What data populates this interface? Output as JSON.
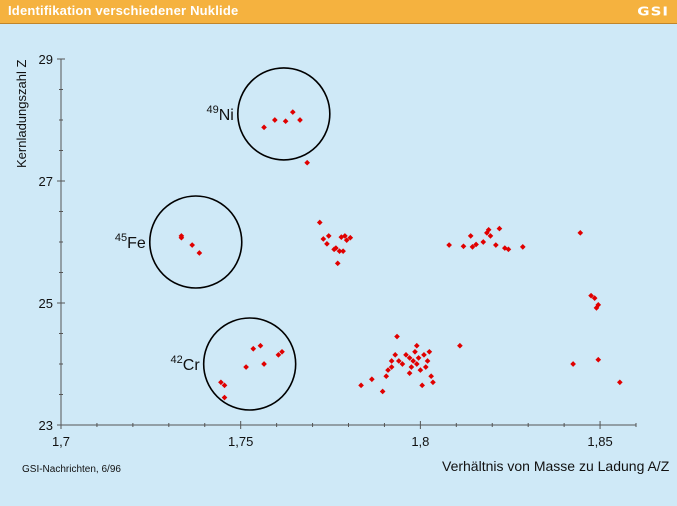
{
  "header": {
    "title": "Identifikation verschiedener Nuklide",
    "logo": "GSI"
  },
  "footer": {
    "source": "GSI-Nachrichten, 6/96"
  },
  "colors": {
    "header_bg": "#f5b23f",
    "plot_bg": "#cfe9f7",
    "point": "#e00000"
  },
  "chart_data": {
    "type": "scatter",
    "title": "Identifikation verschiedener Nuklide",
    "xlabel": "Verhältnis von Masse zu Ladung A/Z",
    "ylabel": "Kernladungszahl Z",
    "xlim": [
      1.7,
      1.86
    ],
    "ylim": [
      23,
      29
    ],
    "x_ticks": [
      1.7,
      1.75,
      1.8,
      1.85
    ],
    "x_tick_labels": [
      "1,7",
      "1,75",
      "1,8",
      "1,85"
    ],
    "y_ticks": [
      23,
      25,
      27,
      29
    ],
    "y_tick_labels": [
      "23",
      "25",
      "27",
      "29"
    ],
    "grid": false,
    "annotations": [
      {
        "label_mass": "49",
        "label_elem": "Ni",
        "cx": 1.762,
        "cy": 28.1
      },
      {
        "label_mass": "45",
        "label_elem": "Fe",
        "cx": 1.7375,
        "cy": 26.0
      },
      {
        "label_mass": "42",
        "label_elem": "Cr",
        "cx": 1.7525,
        "cy": 24.0
      }
    ],
    "points": [
      [
        1.7565,
        27.88
      ],
      [
        1.7595,
        28.0
      ],
      [
        1.7625,
        27.98
      ],
      [
        1.7645,
        28.13
      ],
      [
        1.7665,
        28.0
      ],
      [
        1.7685,
        27.3
      ],
      [
        1.7335,
        26.1
      ],
      [
        1.7335,
        26.07
      ],
      [
        1.7365,
        25.95
      ],
      [
        1.7385,
        25.82
      ],
      [
        1.7445,
        23.7
      ],
      [
        1.7455,
        23.65
      ],
      [
        1.7455,
        23.45
      ],
      [
        1.7515,
        23.95
      ],
      [
        1.7535,
        24.25
      ],
      [
        1.7555,
        24.3
      ],
      [
        1.7565,
        24.0
      ],
      [
        1.7605,
        24.15
      ],
      [
        1.7615,
        24.2
      ],
      [
        1.772,
        26.32
      ],
      [
        1.773,
        26.05
      ],
      [
        1.774,
        25.97
      ],
      [
        1.7745,
        26.1
      ],
      [
        1.776,
        25.88
      ],
      [
        1.7765,
        25.9
      ],
      [
        1.7775,
        25.85
      ],
      [
        1.777,
        25.65
      ],
      [
        1.7785,
        25.85
      ],
      [
        1.778,
        26.08
      ],
      [
        1.779,
        26.1
      ],
      [
        1.7795,
        26.03
      ],
      [
        1.7805,
        26.07
      ],
      [
        1.7835,
        23.65
      ],
      [
        1.7865,
        23.75
      ],
      [
        1.7895,
        23.55
      ],
      [
        1.7905,
        23.8
      ],
      [
        1.791,
        23.9
      ],
      [
        1.792,
        23.95
      ],
      [
        1.792,
        24.05
      ],
      [
        1.793,
        24.15
      ],
      [
        1.7935,
        24.45
      ],
      [
        1.794,
        24.05
      ],
      [
        1.795,
        24.0
      ],
      [
        1.796,
        24.15
      ],
      [
        1.797,
        24.1
      ],
      [
        1.7975,
        23.95
      ],
      [
        1.798,
        24.05
      ],
      [
        1.7985,
        24.2
      ],
      [
        1.799,
        24.0
      ],
      [
        1.8,
        23.9
      ],
      [
        1.7995,
        24.1
      ],
      [
        1.801,
        24.15
      ],
      [
        1.8015,
        23.95
      ],
      [
        1.8005,
        23.65
      ],
      [
        1.802,
        24.05
      ],
      [
        1.8025,
        24.2
      ],
      [
        1.803,
        23.8
      ],
      [
        1.8035,
        23.7
      ],
      [
        1.797,
        23.85
      ],
      [
        1.799,
        24.3
      ],
      [
        1.808,
        25.95
      ],
      [
        1.811,
        24.3
      ],
      [
        1.812,
        25.93
      ],
      [
        1.814,
        26.1
      ],
      [
        1.8145,
        25.92
      ],
      [
        1.8155,
        25.96
      ],
      [
        1.8175,
        26.0
      ],
      [
        1.8185,
        26.15
      ],
      [
        1.819,
        26.2
      ],
      [
        1.8195,
        26.1
      ],
      [
        1.821,
        25.95
      ],
      [
        1.822,
        26.22
      ],
      [
        1.8235,
        25.9
      ],
      [
        1.8245,
        25.88
      ],
      [
        1.8285,
        25.92
      ],
      [
        1.8425,
        24.0
      ],
      [
        1.8445,
        26.15
      ],
      [
        1.8475,
        25.12
      ],
      [
        1.8485,
        25.08
      ],
      [
        1.849,
        24.92
      ],
      [
        1.8495,
        24.97
      ],
      [
        1.8495,
        24.07
      ],
      [
        1.8555,
        23.7
      ]
    ]
  }
}
